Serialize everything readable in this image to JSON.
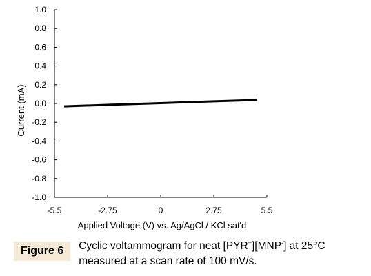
{
  "chart_data": {
    "type": "line",
    "xlabel": "Applied Voltage (V) vs. Ag/AgCl / KCl sat'd",
    "ylabel": "Current (mA)",
    "xlim": [
      -5.5,
      5.5
    ],
    "ylim": [
      -1.0,
      1.0
    ],
    "x_ticks": [
      -5.5,
      -2.75,
      0,
      2.75,
      5.5
    ],
    "x_tick_labels": [
      "-5.5",
      "-2.75",
      "0",
      "2.75",
      "5.5"
    ],
    "y_ticks": [
      1.0,
      0.8,
      0.6,
      0.4,
      0.2,
      0.0,
      -0.2,
      -0.4,
      -0.6,
      -0.8,
      -1.0
    ],
    "y_tick_labels": [
      "1.0",
      "0.8",
      "0.6",
      "0.4",
      "0.2",
      "0.0",
      "-0.2",
      "-0.4",
      "-0.6",
      "-0.8",
      "-1.0"
    ],
    "grid": false,
    "series": [
      {
        "x": [
          -5.0,
          -2.5,
          0.0,
          2.5,
          5.0
        ],
        "y": [
          -0.03,
          -0.013,
          0.004,
          0.021,
          0.038
        ],
        "color": "#000000"
      }
    ]
  },
  "caption": {
    "figure_label": "Figure 6",
    "line1_a": "Cyclic voltammogram for neat [PYR",
    "sup1": "+",
    "line1_b": "][MNP",
    "sup2": "-",
    "line1_c": "] at 25°C",
    "line2": "measured at a scan rate of 100 mV/s."
  }
}
